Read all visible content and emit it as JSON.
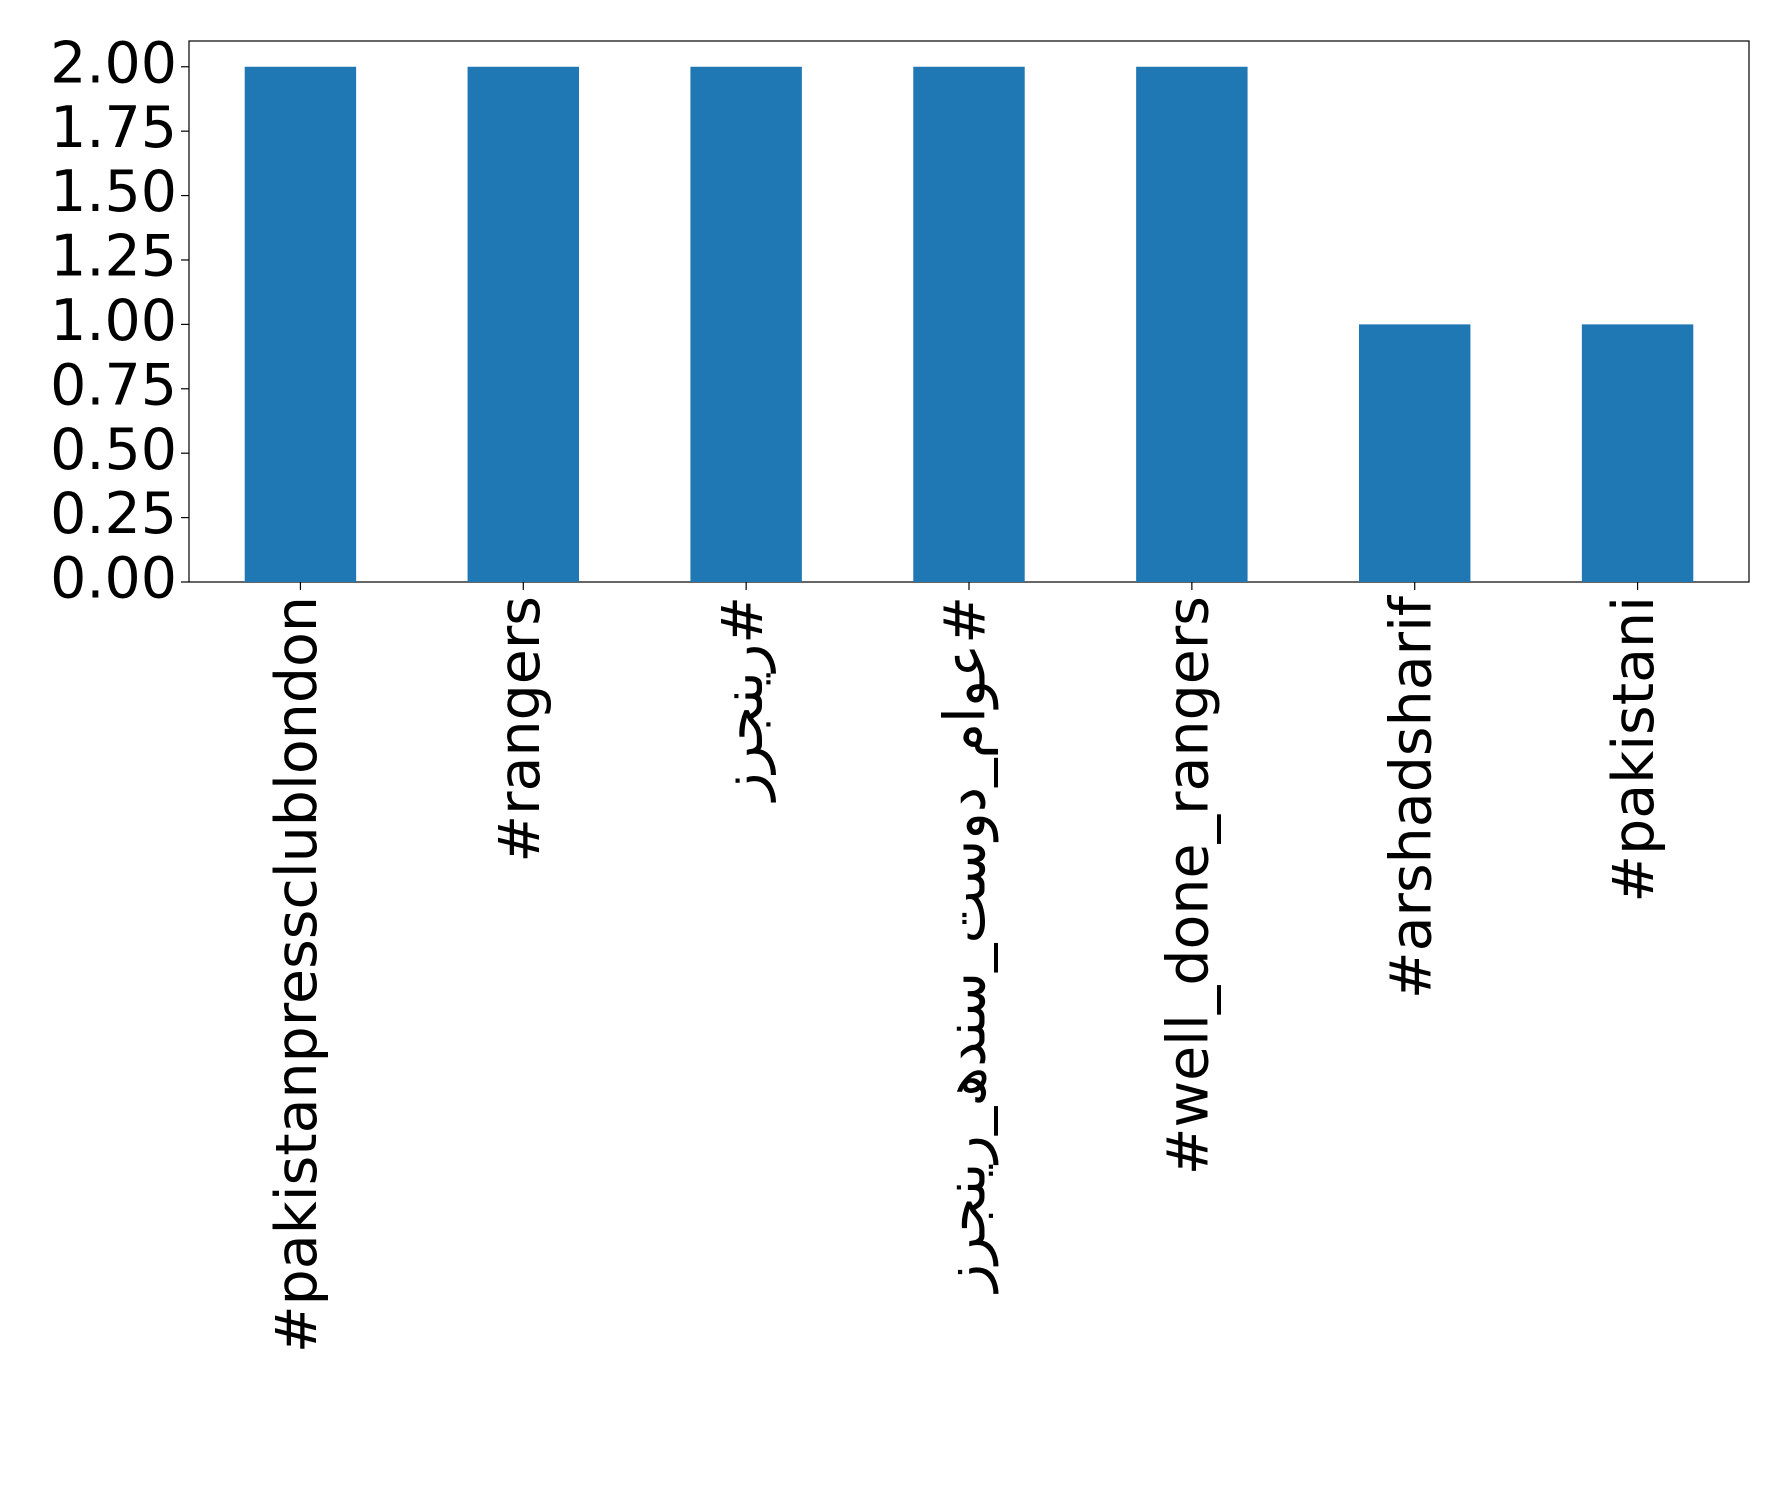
{
  "chart_data": {
    "type": "bar",
    "categories": [
      "#pakistanpressclublondon",
      "#rangers",
      "#رینجرز",
      "#عوام_دوست_سندھ_رینجرز",
      "#well_done_rangers",
      "#arshadsharif",
      "#pakistani"
    ],
    "values": [
      2,
      2,
      2,
      2,
      2,
      1,
      1
    ],
    "color": "#1f77b4",
    "ylim": [
      0,
      2.1
    ],
    "yticks": [
      {
        "value": 0,
        "label": "0.00"
      },
      {
        "value": 0.25,
        "label": "0.25"
      },
      {
        "value": 0.5,
        "label": "0.50"
      },
      {
        "value": 0.75,
        "label": "0.75"
      },
      {
        "value": 1,
        "label": "1.00"
      },
      {
        "value": 1.25,
        "label": "1.25"
      },
      {
        "value": 1.5,
        "label": "1.50"
      },
      {
        "value": 1.75,
        "label": "1.75"
      },
      {
        "value": 2,
        "label": "2.00"
      }
    ],
    "grid": false
  }
}
